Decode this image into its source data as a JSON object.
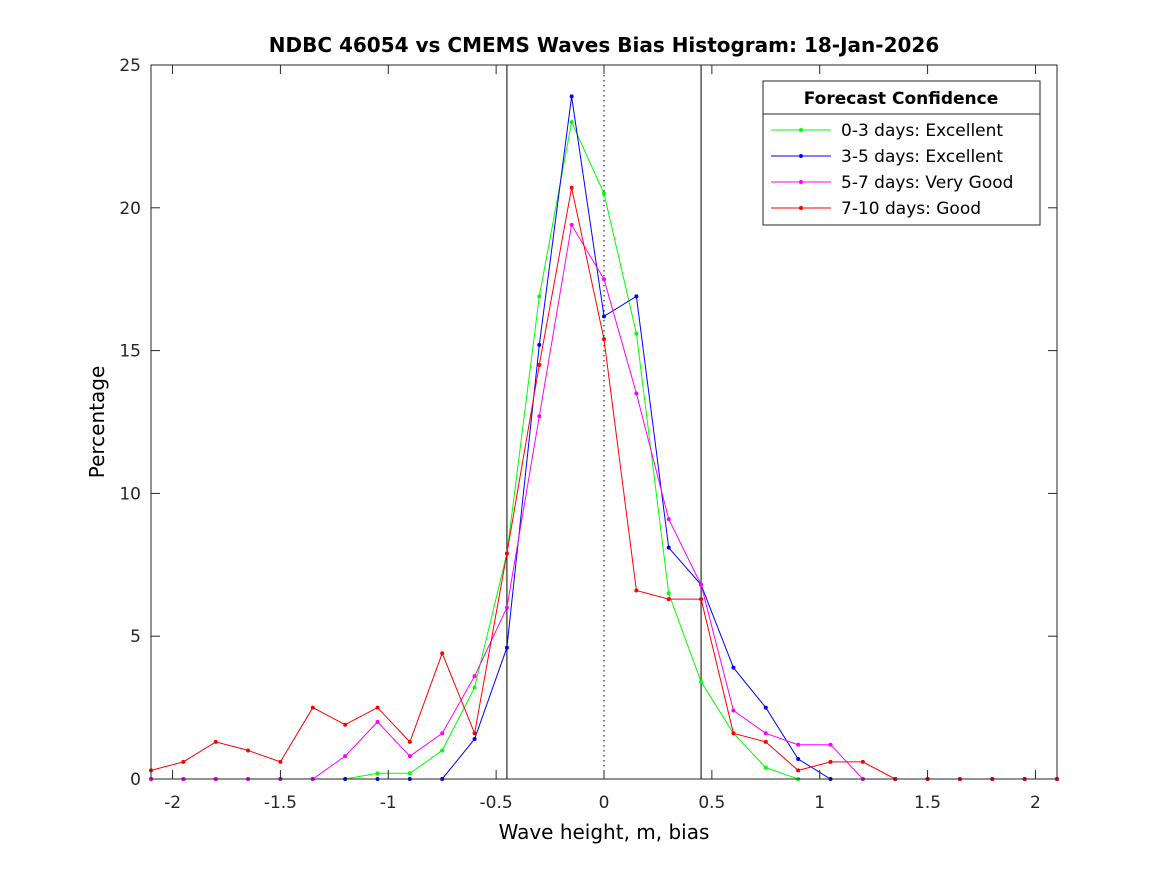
{
  "chart_data": {
    "type": "line",
    "title": "NDBC 46054 vs CMEMS Waves Bias Histogram: 18-Jan-2026",
    "xlabel": "Wave height, m, bias",
    "ylabel": "Percentage",
    "xlim": [
      -2.1,
      2.1
    ],
    "ylim": [
      0,
      25
    ],
    "xticks": [
      -2,
      -1.5,
      -1,
      -0.5,
      0,
      0.5,
      1,
      1.5,
      2
    ],
    "xtick_labels": [
      "-2",
      "-1.5",
      "-1",
      "-0.5",
      "0",
      "0.5",
      "1",
      "1.5",
      "2"
    ],
    "yticks": [
      0,
      5,
      10,
      15,
      20,
      25
    ],
    "ytick_labels": [
      "0",
      "5",
      "10",
      "15",
      "20",
      "25"
    ],
    "vertical_lines": [
      {
        "x": -0.45,
        "style": "solid"
      },
      {
        "x": 0,
        "style": "dotted"
      },
      {
        "x": 0.45,
        "style": "solid"
      }
    ],
    "legend": {
      "title": "Forecast Confidence",
      "position": "top-right"
    },
    "x": [
      -2.1,
      -1.95,
      -1.8,
      -1.65,
      -1.5,
      -1.35,
      -1.2,
      -1.05,
      -0.9,
      -0.75,
      -0.6,
      -0.45,
      -0.3,
      -0.15,
      0,
      0.15,
      0.3,
      0.45,
      0.6,
      0.75,
      0.9,
      1.05,
      1.2,
      1.35,
      1.5,
      1.65,
      1.8,
      1.95,
      2.1
    ],
    "series": [
      {
        "name": "0-3 days: Excellent",
        "color": "#00ff00",
        "values": [
          0,
          0,
          0,
          0,
          0,
          0,
          0,
          0.2,
          0.2,
          1.0,
          3.2,
          7.9,
          16.9,
          23.0,
          20.5,
          15.6,
          6.5,
          3.4,
          1.6,
          0.4,
          0,
          0,
          0,
          0,
          0,
          0,
          0,
          0,
          0
        ]
      },
      {
        "name": "3-5 days: Excellent",
        "color": "#0000ff",
        "values": [
          0,
          0,
          0,
          0,
          0,
          0,
          0,
          0,
          0,
          0,
          1.4,
          4.6,
          15.2,
          23.9,
          16.2,
          16.9,
          8.1,
          6.8,
          3.9,
          2.5,
          0.7,
          0,
          0,
          0,
          0,
          0,
          0,
          0,
          0
        ]
      },
      {
        "name": "5-7 days: Very Good",
        "color": "#ff00ff",
        "values": [
          0,
          0,
          0,
          0,
          0,
          0,
          0.8,
          2.0,
          0.8,
          1.6,
          3.6,
          6.0,
          12.7,
          19.4,
          17.5,
          13.5,
          9.1,
          6.8,
          2.4,
          1.6,
          1.2,
          1.2,
          0,
          0,
          0,
          0,
          0,
          0,
          0
        ]
      },
      {
        "name": "7-10 days: Good",
        "color": "#ff0000",
        "values": [
          0.3,
          0.6,
          1.3,
          1.0,
          0.6,
          2.5,
          1.9,
          2.5,
          1.3,
          4.4,
          1.6,
          7.9,
          14.5,
          20.7,
          15.4,
          6.6,
          6.3,
          6.3,
          1.6,
          1.3,
          0.3,
          0.6,
          0.6,
          0,
          0,
          0,
          0,
          0,
          0
        ]
      }
    ]
  }
}
